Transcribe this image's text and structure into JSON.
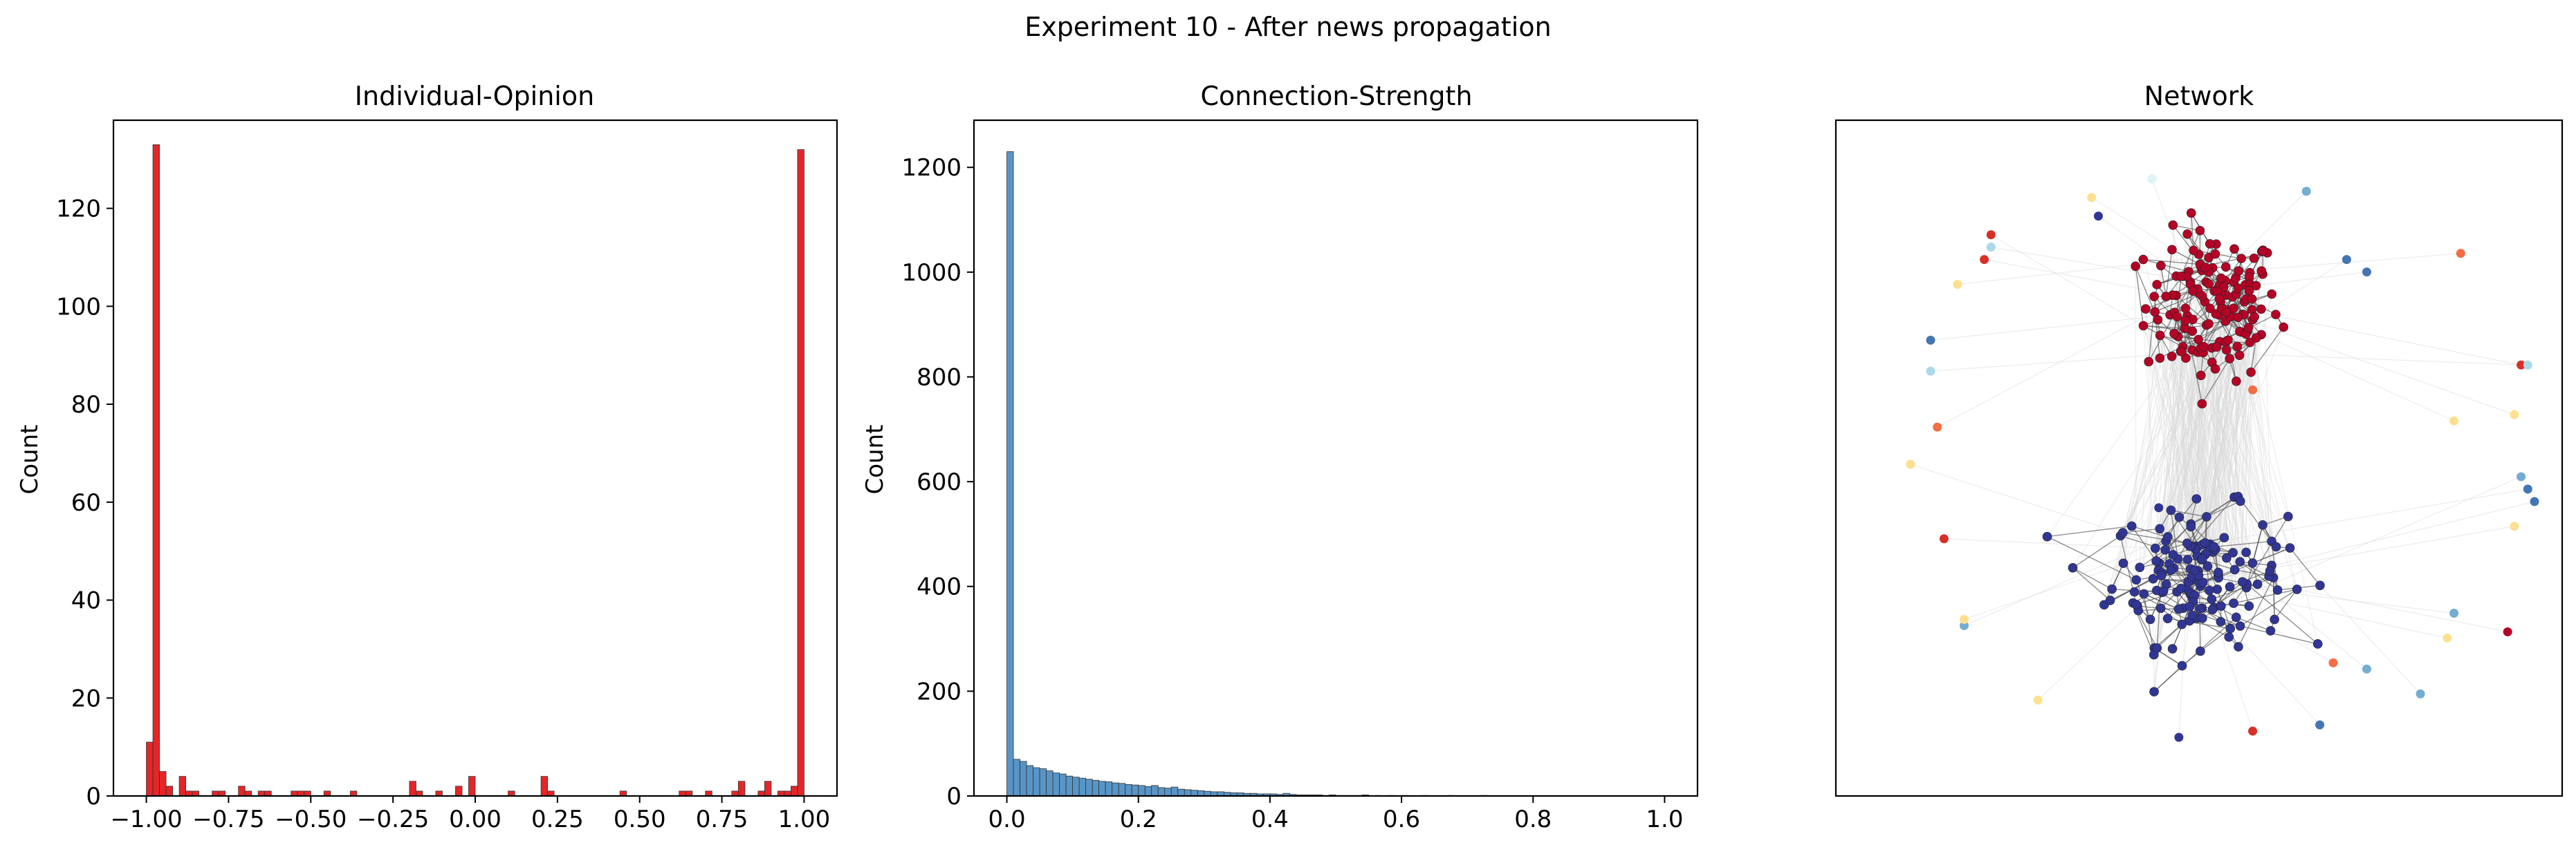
{
  "figure": {
    "suptitle": "Experiment 10 - After news propagation"
  },
  "chart_data": [
    {
      "type": "bar",
      "subtype": "histogram",
      "title": "Individual-Opinion",
      "xlabel": "",
      "ylabel": "Count",
      "xlim": [
        -1.1,
        1.1
      ],
      "ylim": [
        0,
        138
      ],
      "xticks": [
        -1.0,
        -0.75,
        -0.5,
        -0.25,
        0.0,
        0.25,
        0.5,
        0.75,
        1.0
      ],
      "xtick_labels": [
        "−1.00",
        "−0.75",
        "−0.50",
        "−0.25",
        "0.00",
        "0.25",
        "0.50",
        "0.75",
        "1.00"
      ],
      "yticks": [
        0,
        20,
        40,
        60,
        80,
        100,
        120
      ],
      "ytick_labels": [
        "0",
        "20",
        "40",
        "60",
        "80",
        "100",
        "120"
      ],
      "bin_width": 0.02,
      "bar_color": "#e31a1c",
      "bins": [
        {
          "x": -1.0,
          "count": 11
        },
        {
          "x": -0.98,
          "count": 133
        },
        {
          "x": -0.96,
          "count": 5
        },
        {
          "x": -0.94,
          "count": 2
        },
        {
          "x": -0.9,
          "count": 4
        },
        {
          "x": -0.88,
          "count": 1
        },
        {
          "x": -0.86,
          "count": 1
        },
        {
          "x": -0.8,
          "count": 1
        },
        {
          "x": -0.78,
          "count": 1
        },
        {
          "x": -0.72,
          "count": 2
        },
        {
          "x": -0.7,
          "count": 1
        },
        {
          "x": -0.66,
          "count": 1
        },
        {
          "x": -0.64,
          "count": 1
        },
        {
          "x": -0.56,
          "count": 1
        },
        {
          "x": -0.54,
          "count": 1
        },
        {
          "x": -0.52,
          "count": 1
        },
        {
          "x": -0.46,
          "count": 1
        },
        {
          "x": -0.38,
          "count": 1
        },
        {
          "x": -0.2,
          "count": 3
        },
        {
          "x": -0.18,
          "count": 1
        },
        {
          "x": -0.12,
          "count": 1
        },
        {
          "x": -0.06,
          "count": 2
        },
        {
          "x": -0.02,
          "count": 4
        },
        {
          "x": 0.1,
          "count": 1
        },
        {
          "x": 0.2,
          "count": 4
        },
        {
          "x": 0.22,
          "count": 1
        },
        {
          "x": 0.44,
          "count": 1
        },
        {
          "x": 0.62,
          "count": 1
        },
        {
          "x": 0.64,
          "count": 1
        },
        {
          "x": 0.7,
          "count": 1
        },
        {
          "x": 0.78,
          "count": 1
        },
        {
          "x": 0.8,
          "count": 3
        },
        {
          "x": 0.86,
          "count": 1
        },
        {
          "x": 0.88,
          "count": 3
        },
        {
          "x": 0.92,
          "count": 1
        },
        {
          "x": 0.94,
          "count": 1
        },
        {
          "x": 0.96,
          "count": 2
        },
        {
          "x": 0.98,
          "count": 132
        }
      ]
    },
    {
      "type": "bar",
      "subtype": "histogram",
      "title": "Connection-Strength",
      "xlabel": "",
      "ylabel": "Count",
      "xlim": [
        -0.05,
        1.05
      ],
      "ylim": [
        0,
        1290
      ],
      "xticks": [
        0.0,
        0.2,
        0.4,
        0.6,
        0.8,
        1.0
      ],
      "xtick_labels": [
        "0.0",
        "0.2",
        "0.4",
        "0.6",
        "0.8",
        "1.0"
      ],
      "yticks": [
        0,
        200,
        400,
        600,
        800,
        1000,
        1200
      ],
      "ytick_labels": [
        "0",
        "200",
        "400",
        "600",
        "800",
        "1000",
        "1200"
      ],
      "bin_width": 0.01,
      "bar_color": "#4f8fc4",
      "bins": [
        {
          "x": 0.0,
          "count": 1230
        },
        {
          "x": 0.01,
          "count": 70
        },
        {
          "x": 0.02,
          "count": 66
        },
        {
          "x": 0.03,
          "count": 58
        },
        {
          "x": 0.04,
          "count": 54
        },
        {
          "x": 0.05,
          "count": 52
        },
        {
          "x": 0.06,
          "count": 48
        },
        {
          "x": 0.07,
          "count": 44
        },
        {
          "x": 0.08,
          "count": 42
        },
        {
          "x": 0.09,
          "count": 38
        },
        {
          "x": 0.1,
          "count": 36
        },
        {
          "x": 0.11,
          "count": 34
        },
        {
          "x": 0.12,
          "count": 32
        },
        {
          "x": 0.13,
          "count": 30
        },
        {
          "x": 0.14,
          "count": 28
        },
        {
          "x": 0.15,
          "count": 27
        },
        {
          "x": 0.16,
          "count": 25
        },
        {
          "x": 0.17,
          "count": 24
        },
        {
          "x": 0.18,
          "count": 22
        },
        {
          "x": 0.19,
          "count": 21
        },
        {
          "x": 0.2,
          "count": 20
        },
        {
          "x": 0.21,
          "count": 18
        },
        {
          "x": 0.22,
          "count": 20
        },
        {
          "x": 0.23,
          "count": 16
        },
        {
          "x": 0.24,
          "count": 15
        },
        {
          "x": 0.25,
          "count": 17
        },
        {
          "x": 0.26,
          "count": 13
        },
        {
          "x": 0.27,
          "count": 12
        },
        {
          "x": 0.28,
          "count": 11
        },
        {
          "x": 0.29,
          "count": 10
        },
        {
          "x": 0.3,
          "count": 9
        },
        {
          "x": 0.31,
          "count": 8
        },
        {
          "x": 0.32,
          "count": 8
        },
        {
          "x": 0.33,
          "count": 7
        },
        {
          "x": 0.34,
          "count": 6
        },
        {
          "x": 0.35,
          "count": 6
        },
        {
          "x": 0.36,
          "count": 5
        },
        {
          "x": 0.37,
          "count": 5
        },
        {
          "x": 0.38,
          "count": 4
        },
        {
          "x": 0.39,
          "count": 4
        },
        {
          "x": 0.4,
          "count": 4
        },
        {
          "x": 0.41,
          "count": 3
        },
        {
          "x": 0.42,
          "count": 5
        },
        {
          "x": 0.43,
          "count": 3
        },
        {
          "x": 0.44,
          "count": 2
        },
        {
          "x": 0.45,
          "count": 2
        },
        {
          "x": 0.46,
          "count": 2
        },
        {
          "x": 0.47,
          "count": 2
        },
        {
          "x": 0.48,
          "count": 1
        },
        {
          "x": 0.49,
          "count": 2
        },
        {
          "x": 0.5,
          "count": 1
        },
        {
          "x": 0.51,
          "count": 1
        },
        {
          "x": 0.52,
          "count": 1
        },
        {
          "x": 0.53,
          "count": 1
        },
        {
          "x": 0.54,
          "count": 2
        },
        {
          "x": 0.56,
          "count": 1
        },
        {
          "x": 0.58,
          "count": 1
        },
        {
          "x": 0.6,
          "count": 1
        },
        {
          "x": 0.63,
          "count": 1
        },
        {
          "x": 0.67,
          "count": 1
        },
        {
          "x": 0.72,
          "count": 1
        }
      ]
    },
    {
      "type": "scatter",
      "subtype": "network",
      "title": "Network",
      "xlabel": "",
      "ylabel": "",
      "axes_ticks": false,
      "xlim": [
        0,
        1
      ],
      "ylim": [
        0,
        1
      ],
      "clusters": [
        {
          "cx": 0.52,
          "cy": 0.745,
          "sx": 0.05,
          "sy": 0.06,
          "count": 150,
          "color": "#b40426"
        },
        {
          "cx": 0.5,
          "cy": 0.31,
          "sx": 0.065,
          "sy": 0.055,
          "count": 150,
          "color": "#313695"
        }
      ],
      "outliers": [
        {
          "x": 0.35,
          "y": 0.89,
          "color": "#313695"
        },
        {
          "x": 0.66,
          "y": 0.93,
          "color": "#74add1"
        },
        {
          "x": 0.72,
          "y": 0.82,
          "color": "#4575b4"
        },
        {
          "x": 0.75,
          "y": 0.8,
          "color": "#4575b4"
        },
        {
          "x": 0.89,
          "y": 0.83,
          "color": "#f46d43"
        },
        {
          "x": 0.19,
          "y": 0.86,
          "color": "#d73027"
        },
        {
          "x": 0.1,
          "y": 0.69,
          "color": "#4575b4"
        },
        {
          "x": 0.1,
          "y": 0.64,
          "color": "#abd9e9"
        },
        {
          "x": 0.11,
          "y": 0.55,
          "color": "#f46d43"
        },
        {
          "x": 0.12,
          "y": 0.37,
          "color": "#d73027"
        },
        {
          "x": 0.15,
          "y": 0.23,
          "color": "#74add1"
        },
        {
          "x": 0.26,
          "y": 0.11,
          "color": "#fee090"
        },
        {
          "x": 0.47,
          "y": 0.05,
          "color": "#313695"
        },
        {
          "x": 0.58,
          "y": 0.06,
          "color": "#d73027"
        },
        {
          "x": 0.68,
          "y": 0.07,
          "color": "#4575b4"
        },
        {
          "x": 0.7,
          "y": 0.17,
          "color": "#f46d43"
        },
        {
          "x": 0.75,
          "y": 0.16,
          "color": "#74add1"
        },
        {
          "x": 0.83,
          "y": 0.12,
          "color": "#74add1"
        },
        {
          "x": 0.87,
          "y": 0.21,
          "color": "#fee090"
        },
        {
          "x": 0.88,
          "y": 0.25,
          "color": "#74add1"
        },
        {
          "x": 0.96,
          "y": 0.22,
          "color": "#b40426"
        },
        {
          "x": 0.97,
          "y": 0.39,
          "color": "#fee090"
        },
        {
          "x": 0.98,
          "y": 0.47,
          "color": "#74add1"
        },
        {
          "x": 0.99,
          "y": 0.45,
          "color": "#4575b4"
        },
        {
          "x": 1.0,
          "y": 0.43,
          "color": "#4575b4"
        },
        {
          "x": 0.97,
          "y": 0.57,
          "color": "#fee090"
        },
        {
          "x": 0.98,
          "y": 0.65,
          "color": "#d73027"
        },
        {
          "x": 0.99,
          "y": 0.65,
          "color": "#abd9e9"
        },
        {
          "x": 0.88,
          "y": 0.56,
          "color": "#fee090"
        },
        {
          "x": 0.44,
          "y": 0.42,
          "color": "#313695"
        },
        {
          "x": 0.14,
          "y": 0.78,
          "color": "#fee090"
        },
        {
          "x": 0.18,
          "y": 0.82,
          "color": "#d73027"
        },
        {
          "x": 0.19,
          "y": 0.84,
          "color": "#abd9e9"
        },
        {
          "x": 0.43,
          "y": 0.95,
          "color": "#e0f3f8"
        },
        {
          "x": 0.34,
          "y": 0.92,
          "color": "#fee090"
        },
        {
          "x": 0.07,
          "y": 0.49,
          "color": "#fee090"
        },
        {
          "x": 0.15,
          "y": 0.24,
          "color": "#fee090"
        },
        {
          "x": 0.58,
          "y": 0.61,
          "color": "#f46d43"
        }
      ]
    }
  ]
}
